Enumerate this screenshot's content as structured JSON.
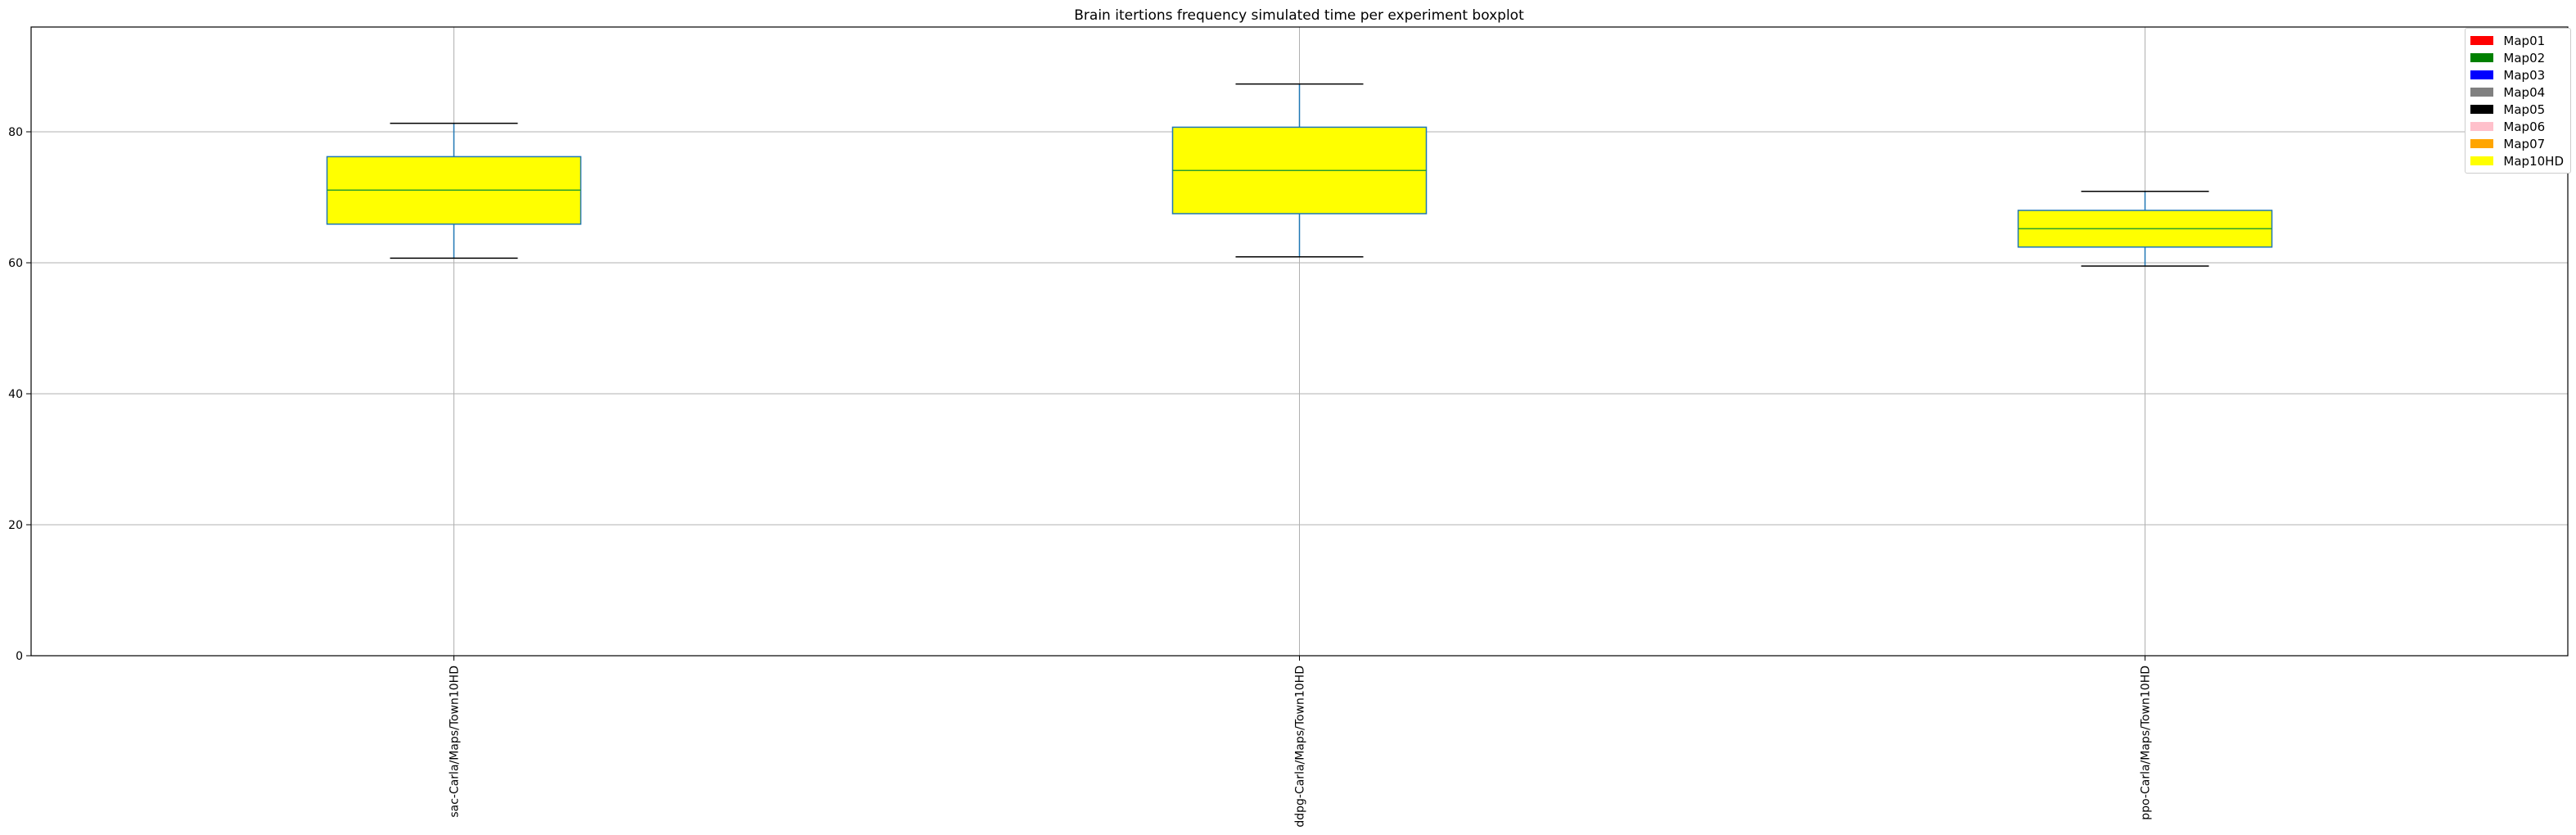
{
  "chart_data": {
    "type": "boxplot",
    "title": "Brain itertions frequency simulated time per experiment boxplot",
    "xlabel": "",
    "ylabel": "",
    "ylim": [
      0,
      96
    ],
    "yticks": [
      0,
      20,
      40,
      60,
      80
    ],
    "grid": true,
    "legend_position": "top-right",
    "categories": [
      "sac-Carla/Maps/Town10HD",
      "ddpg-Carla/Maps/Town10HD",
      "ppo-Carla/Maps/Town10HD"
    ],
    "boxes": [
      {
        "category": "sac-Carla/Maps/Town10HD",
        "whisker_low": 60.7,
        "q1": 65.9,
        "median": 71.1,
        "q3": 76.2,
        "whisker_high": 81.3,
        "color": "#ffff00"
      },
      {
        "category": "ddpg-Carla/Maps/Town10HD",
        "whisker_low": 60.9,
        "q1": 67.5,
        "median": 74.1,
        "q3": 80.7,
        "whisker_high": 87.3,
        "color": "#ffff00"
      },
      {
        "category": "ppo-Carla/Maps/Town10HD",
        "whisker_low": 59.5,
        "q1": 62.4,
        "median": 65.2,
        "q3": 68.0,
        "whisker_high": 70.9,
        "color": "#ffff00"
      }
    ],
    "legend": [
      {
        "label": "Map01",
        "color": "#ff0000"
      },
      {
        "label": "Map02",
        "color": "#008000"
      },
      {
        "label": "Map03",
        "color": "#0000ff"
      },
      {
        "label": "Map04",
        "color": "#808080"
      },
      {
        "label": "Map05",
        "color": "#000000"
      },
      {
        "label": "Map06",
        "color": "#ffc0cb"
      },
      {
        "label": "Map07",
        "color": "#ffa500"
      },
      {
        "label": "Map10HD",
        "color": "#ffff00"
      }
    ],
    "box_edge_color": "#1f77b4",
    "median_color": "#2ca02c",
    "cap_color": "#000000"
  }
}
